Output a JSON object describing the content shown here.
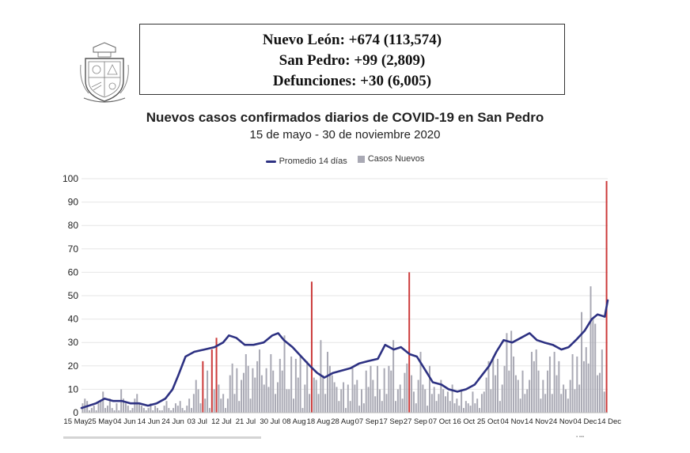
{
  "stats": {
    "line1": "Nuevo León: +674 (113,574)",
    "line2": "San Pedro: +99 (2,809)",
    "line3": "Defunciones: +30 (6,005)"
  },
  "colors": {
    "line": "#2d3182",
    "bars": "#a9a9b4",
    "highlight": "#cc3b3b",
    "grid": "#e6e6e6"
  },
  "chart_data": {
    "type": "bar",
    "title": "Nuevos casos confirmados diarios de COVID-19 en San Pedro",
    "subtitle": "15 de mayo - 30 de noviembre 2020",
    "legend": [
      "Promedio 14 días",
      "Casos Nuevos"
    ],
    "legend_position": "top-center",
    "grid": true,
    "ylim": [
      0,
      100
    ],
    "yticks": [
      0,
      10,
      20,
      30,
      40,
      50,
      60,
      70,
      80,
      90,
      100
    ],
    "xtick_labels": [
      "15 May",
      "25 May",
      "04 Jun",
      "14 Jun",
      "24 Jun",
      "03 Jul",
      "12 Jul",
      "21 Jul",
      "30 Jul",
      "08 Aug",
      "18 Aug",
      "28 Aug",
      "07 Sep",
      "17 Sep",
      "27 Sep",
      "07 Oct",
      "16 Oct",
      "25 Oct",
      "04 Nov",
      "14 Nov",
      "24 Nov",
      "04 Dec",
      "14 Dec"
    ],
    "series": [
      {
        "name": "Casos Nuevos",
        "kind": "bar",
        "values": [
          4,
          6,
          5,
          1,
          2,
          3,
          1,
          4,
          5,
          9,
          2,
          3,
          6,
          2,
          1,
          4,
          1,
          10,
          6,
          4,
          3,
          1,
          2,
          6,
          8,
          4,
          3,
          2,
          1,
          2,
          4,
          1,
          3,
          2,
          1,
          1,
          3,
          5,
          2,
          1,
          2,
          4,
          3,
          5,
          2,
          1,
          3,
          6,
          2,
          8,
          14,
          10,
          4,
          22,
          6,
          18,
          2,
          27,
          10,
          32,
          12,
          6,
          8,
          2,
          6,
          16,
          21,
          8,
          19,
          5,
          14,
          17,
          25,
          20,
          6,
          19,
          15,
          22,
          27,
          16,
          12,
          19,
          11,
          25,
          18,
          8,
          13,
          23,
          18,
          33,
          10,
          10,
          24,
          6,
          23,
          15,
          24,
          2,
          12,
          22,
          8,
          56,
          15,
          14,
          8,
          31,
          16,
          8,
          26,
          20,
          16,
          13,
          11,
          5,
          10,
          13,
          2,
          12,
          5,
          19,
          12,
          14,
          3,
          10,
          4,
          18,
          11,
          20,
          14,
          7,
          20,
          10,
          5,
          19,
          8,
          20,
          18,
          31,
          5,
          10,
          12,
          6,
          17,
          21,
          60,
          16,
          9,
          4,
          14,
          26,
          12,
          10,
          3,
          20,
          8,
          11,
          5,
          8,
          14,
          10,
          7,
          9,
          5,
          12,
          4,
          6,
          3,
          10,
          2,
          5,
          4,
          3,
          9,
          4,
          6,
          2,
          8,
          9,
          15,
          22,
          10,
          24,
          16,
          23,
          5,
          12,
          20,
          34,
          18,
          35,
          24,
          16,
          14,
          6,
          18,
          8,
          10,
          14,
          26,
          22,
          27,
          18,
          6,
          14,
          8,
          18,
          24,
          8,
          26,
          16,
          22,
          8,
          12,
          10,
          6,
          14,
          25,
          10,
          24,
          12,
          43,
          22,
          28,
          21,
          54,
          40,
          38,
          16,
          17,
          27,
          9,
          99
        ]
      },
      {
        "name": "Promedio 14 días",
        "kind": "line",
        "keypoints": [
          [
            0,
            2
          ],
          [
            10,
            4
          ],
          [
            16,
            6
          ],
          [
            22,
            5
          ],
          [
            28,
            5
          ],
          [
            34,
            4
          ],
          [
            40,
            4
          ],
          [
            46,
            3
          ],
          [
            52,
            4
          ],
          [
            58,
            6
          ],
          [
            63,
            10
          ],
          [
            67,
            16
          ],
          [
            72,
            24
          ],
          [
            78,
            26
          ],
          [
            85,
            27
          ],
          [
            92,
            28
          ],
          [
            98,
            30
          ],
          [
            102,
            33
          ],
          [
            107,
            32
          ],
          [
            113,
            29
          ],
          [
            119,
            29
          ],
          [
            126,
            30
          ],
          [
            132,
            33
          ],
          [
            136,
            34
          ],
          [
            140,
            31
          ],
          [
            146,
            28
          ],
          [
            152,
            24
          ],
          [
            158,
            20
          ],
          [
            163,
            17
          ],
          [
            168,
            15
          ],
          [
            174,
            17
          ],
          [
            180,
            18
          ],
          [
            186,
            19
          ],
          [
            192,
            21
          ],
          [
            198,
            22
          ],
          [
            205,
            23
          ],
          [
            210,
            29
          ],
          [
            216,
            27
          ],
          [
            221,
            28
          ],
          [
            227,
            25
          ],
          [
            232,
            24
          ],
          [
            238,
            18
          ],
          [
            243,
            13
          ],
          [
            249,
            12
          ],
          [
            254,
            10
          ],
          [
            260,
            9
          ],
          [
            266,
            10
          ],
          [
            272,
            12
          ],
          [
            277,
            16
          ],
          [
            282,
            20
          ],
          [
            287,
            26
          ],
          [
            292,
            31
          ],
          [
            298,
            30
          ],
          [
            304,
            32
          ],
          [
            310,
            34
          ],
          [
            315,
            31
          ],
          [
            320,
            30
          ],
          [
            326,
            29
          ],
          [
            332,
            27
          ],
          [
            337,
            28
          ],
          [
            342,
            31
          ],
          [
            348,
            35
          ],
          [
            353,
            40
          ],
          [
            357,
            42
          ],
          [
            362,
            41
          ],
          [
            364,
            48
          ]
        ]
      }
    ],
    "highlighted_bar_values": [
      22,
      27,
      32,
      34,
      56,
      60,
      99
    ]
  }
}
